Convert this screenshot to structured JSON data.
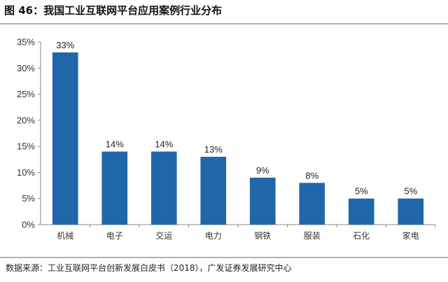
{
  "figure": {
    "title": "图 46：我国工业互联网平台应用案例行业分布",
    "source": "数据来源：工业互联网平台创新发展白皮书（2018），广发证券发展研究中心"
  },
  "chart_data": {
    "type": "bar",
    "categories": [
      "机械",
      "电子",
      "交运",
      "电力",
      "钢铁",
      "服装",
      "石化",
      "家电"
    ],
    "values": [
      33,
      14,
      14,
      13,
      9,
      8,
      5,
      5
    ],
    "data_labels": [
      "33%",
      "14%",
      "14%",
      "13%",
      "9%",
      "8%",
      "5%",
      "5%"
    ],
    "yticks": [
      "0%",
      "5%",
      "10%",
      "15%",
      "20%",
      "25%",
      "30%",
      "35%"
    ],
    "ylim": [
      0,
      35
    ],
    "grid": false,
    "bar_color": "#1f67a8"
  }
}
